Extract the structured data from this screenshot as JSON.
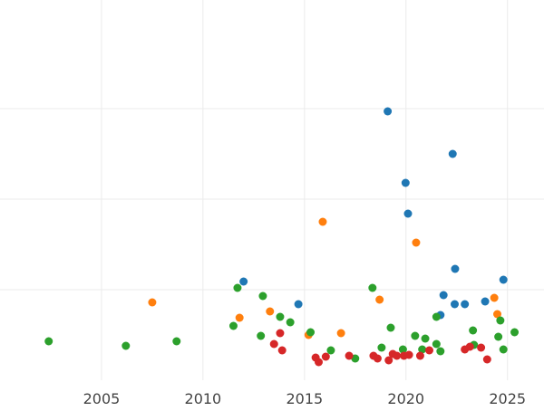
{
  "chart_data": {
    "type": "scatter",
    "title": "",
    "xlabel": "",
    "ylabel": "",
    "xlim": [
      2000.0,
      2026.8
    ],
    "ylim": [
      0,
      420
    ],
    "grid": true,
    "legend": "none",
    "x_ticks": [
      2005,
      2010,
      2015,
      2020,
      2025
    ],
    "x_tick_labels": [
      "2005",
      "2010",
      "2015",
      "2020",
      "2025"
    ],
    "y_gridlines": [
      100,
      200,
      300
    ],
    "series": [
      {
        "color": "#1f77b4",
        "points": [
          {
            "x": 2012.0,
            "y": 109
          },
          {
            "x": 2014.7,
            "y": 84
          },
          {
            "x": 2019.1,
            "y": 297
          },
          {
            "x": 2019.98,
            "y": 218
          },
          {
            "x": 2020.1,
            "y": 184
          },
          {
            "x": 2021.7,
            "y": 72
          },
          {
            "x": 2021.85,
            "y": 94
          },
          {
            "x": 2022.3,
            "y": 250
          },
          {
            "x": 2022.42,
            "y": 123
          },
          {
            "x": 2022.4,
            "y": 84
          },
          {
            "x": 2022.9,
            "y": 84
          },
          {
            "x": 2023.9,
            "y": 87
          },
          {
            "x": 2024.8,
            "y": 111
          }
        ]
      },
      {
        "color": "#ff7f0e",
        "points": [
          {
            "x": 2007.5,
            "y": 86
          },
          {
            "x": 2011.8,
            "y": 69
          },
          {
            "x": 2013.3,
            "y": 76
          },
          {
            "x": 2015.2,
            "y": 50
          },
          {
            "x": 2015.9,
            "y": 175
          },
          {
            "x": 2016.8,
            "y": 52
          },
          {
            "x": 2018.7,
            "y": 89
          },
          {
            "x": 2020.5,
            "y": 152
          },
          {
            "x": 2024.35,
            "y": 91
          },
          {
            "x": 2024.5,
            "y": 73
          }
        ]
      },
      {
        "color": "#2ca02c",
        "points": [
          {
            "x": 2002.4,
            "y": 43
          },
          {
            "x": 2006.2,
            "y": 38
          },
          {
            "x": 2008.7,
            "y": 43
          },
          {
            "x": 2011.5,
            "y": 60
          },
          {
            "x": 2011.7,
            "y": 102
          },
          {
            "x": 2012.85,
            "y": 49
          },
          {
            "x": 2012.95,
            "y": 93
          },
          {
            "x": 2013.8,
            "y": 70
          },
          {
            "x": 2014.3,
            "y": 64
          },
          {
            "x": 2015.3,
            "y": 53
          },
          {
            "x": 2016.3,
            "y": 33
          },
          {
            "x": 2017.5,
            "y": 24
          },
          {
            "x": 2018.35,
            "y": 102
          },
          {
            "x": 2018.8,
            "y": 36
          },
          {
            "x": 2019.25,
            "y": 58
          },
          {
            "x": 2019.85,
            "y": 34
          },
          {
            "x": 2020.45,
            "y": 49
          },
          {
            "x": 2020.8,
            "y": 34
          },
          {
            "x": 2020.95,
            "y": 46
          },
          {
            "x": 2021.5,
            "y": 70
          },
          {
            "x": 2021.5,
            "y": 40
          },
          {
            "x": 2021.7,
            "y": 32
          },
          {
            "x": 2023.3,
            "y": 55
          },
          {
            "x": 2023.35,
            "y": 39
          },
          {
            "x": 2024.55,
            "y": 48
          },
          {
            "x": 2024.65,
            "y": 66
          },
          {
            "x": 2024.8,
            "y": 34
          },
          {
            "x": 2025.35,
            "y": 53
          }
        ]
      },
      {
        "color": "#d62728",
        "points": [
          {
            "x": 2013.5,
            "y": 40
          },
          {
            "x": 2013.8,
            "y": 52
          },
          {
            "x": 2013.9,
            "y": 33
          },
          {
            "x": 2015.55,
            "y": 25
          },
          {
            "x": 2015.7,
            "y": 20
          },
          {
            "x": 2016.05,
            "y": 26
          },
          {
            "x": 2017.2,
            "y": 27
          },
          {
            "x": 2018.4,
            "y": 27
          },
          {
            "x": 2018.6,
            "y": 24
          },
          {
            "x": 2019.15,
            "y": 22
          },
          {
            "x": 2019.35,
            "y": 29
          },
          {
            "x": 2019.55,
            "y": 27
          },
          {
            "x": 2019.9,
            "y": 27
          },
          {
            "x": 2020.15,
            "y": 28
          },
          {
            "x": 2020.7,
            "y": 27
          },
          {
            "x": 2021.15,
            "y": 33
          },
          {
            "x": 2022.9,
            "y": 34
          },
          {
            "x": 2023.15,
            "y": 37
          },
          {
            "x": 2023.7,
            "y": 36
          },
          {
            "x": 2024.0,
            "y": 23
          }
        ]
      }
    ]
  }
}
